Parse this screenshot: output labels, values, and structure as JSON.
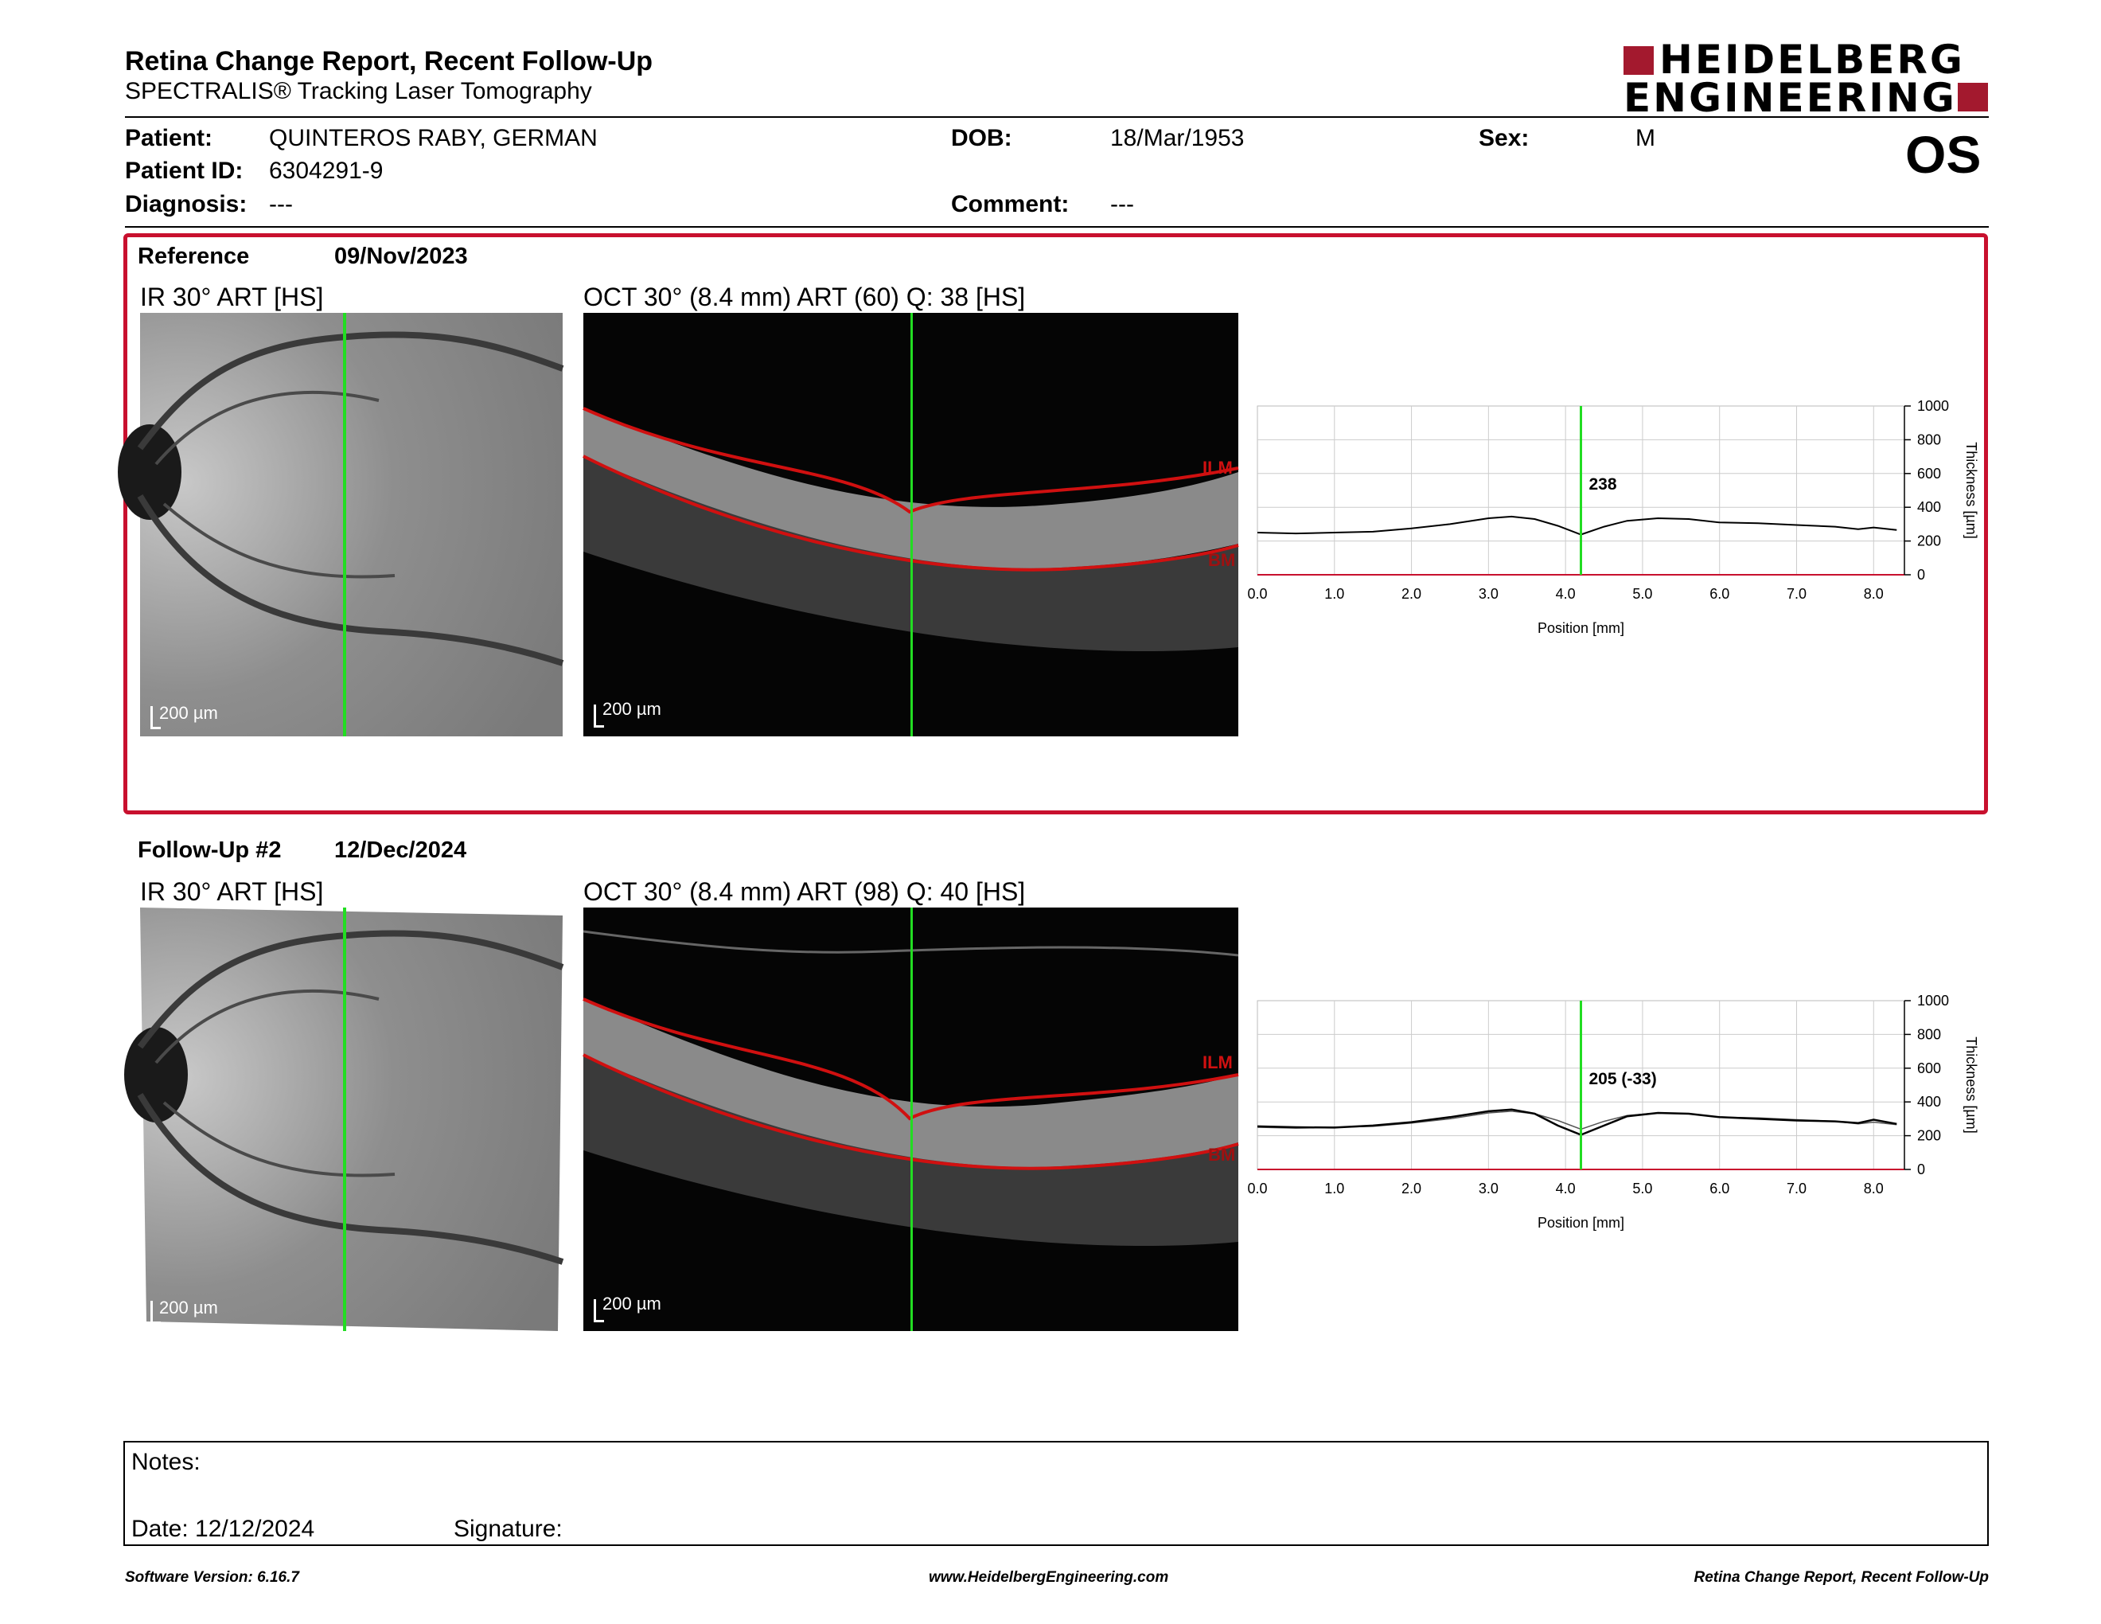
{
  "header": {
    "title": "Retina Change Report, Recent Follow-Up",
    "subtitle": "SPECTRALIS® Tracking Laser Tomography",
    "logo_line1": "HEIDELBERG",
    "logo_line2": "ENGINEERING",
    "eye": "OS"
  },
  "patient": {
    "name_label": "Patient:",
    "name": "QUINTEROS RABY, GERMAN",
    "id_label": "Patient ID:",
    "id": "6304291-9",
    "diagnosis_label": "Diagnosis:",
    "diagnosis": "---",
    "dob_label": "DOB:",
    "dob": "18/Mar/1953",
    "comment_label": "Comment:",
    "comment": "---",
    "sex_label": "Sex:",
    "sex": "M"
  },
  "reference": {
    "label": "Reference",
    "date": "09/Nov/2023",
    "ir_caption": "IR 30° ART [HS]",
    "oct_caption": "OCT 30° (8.4 mm) ART (60) Q: 38 [HS]",
    "ir_scale": "200 µm",
    "oct_scale": "200 µm",
    "ilm": "ILM",
    "bm": "BM",
    "chart_value_label": "238"
  },
  "followup": {
    "label": "Follow-Up #2",
    "date": "12/Dec/2024",
    "ir_caption": "IR 30° ART [HS]",
    "oct_caption": "OCT 30° (8.4 mm) ART (98) Q: 40 [HS]",
    "ir_scale": "200 µm",
    "oct_scale": "200 µm",
    "ilm": "ILM",
    "bm": "BM",
    "chart_value_label": "205 (-33)"
  },
  "notes": {
    "notes_label": "Notes:",
    "date_label": "Date: 12/12/2024",
    "signature_label": "Signature:"
  },
  "footer": {
    "left": "Software Version: 6.16.7",
    "center": "www.HeidelbergEngineering.com",
    "right": "Retina Change Report, Recent Follow-Up"
  },
  "colors": {
    "accent": "#c8102e",
    "scan_line": "#22dd22",
    "logo": "#a3192e"
  },
  "chart_data": [
    {
      "type": "line",
      "xlabel": "Position [mm]",
      "ylabel": "Thickness [µm]",
      "xlim": [
        0,
        8.4
      ],
      "ylim": [
        0,
        1000
      ],
      "xticks": [
        "0.0",
        "1.0",
        "2.0",
        "3.0",
        "4.0",
        "5.0",
        "6.0",
        "7.0",
        "8.0"
      ],
      "yticks": [
        "0",
        "200",
        "400",
        "600",
        "800",
        "1000"
      ],
      "marker_x": 4.2,
      "grid": true,
      "series": [
        {
          "x": [
            0,
            0.5,
            1,
            1.5,
            2,
            2.5,
            3,
            3.3,
            3.6,
            3.9,
            4.2,
            4.5,
            4.8,
            5.2,
            5.6,
            6,
            6.5,
            7,
            7.5,
            7.8,
            8,
            8.3
          ],
          "y": [
            250,
            245,
            250,
            255,
            275,
            300,
            335,
            345,
            330,
            290,
            238,
            285,
            320,
            335,
            330,
            310,
            305,
            295,
            285,
            270,
            280,
            265
          ]
        }
      ]
    },
    {
      "type": "line",
      "xlabel": "Position [mm]",
      "ylabel": "Thickness [µm]",
      "xlim": [
        0,
        8.4
      ],
      "ylim": [
        0,
        1000
      ],
      "xticks": [
        "0.0",
        "1.0",
        "2.0",
        "3.0",
        "4.0",
        "5.0",
        "6.0",
        "7.0",
        "8.0"
      ],
      "yticks": [
        "0",
        "200",
        "400",
        "600",
        "800",
        "1000"
      ],
      "marker_x": 4.2,
      "grid": true,
      "series": [
        {
          "x": [
            0,
            0.5,
            1,
            1.5,
            2,
            2.5,
            3,
            3.3,
            3.6,
            3.9,
            4.2,
            4.5,
            4.8,
            5.2,
            5.6,
            6,
            6.5,
            7,
            7.5,
            7.8,
            8,
            8.3
          ],
          "y": [
            250,
            245,
            250,
            255,
            275,
            300,
            335,
            345,
            330,
            290,
            238,
            285,
            320,
            335,
            330,
            310,
            305,
            295,
            285,
            270,
            280,
            265
          ]
        },
        {
          "x": [
            0,
            0.5,
            1,
            1.5,
            2,
            2.5,
            3,
            3.3,
            3.6,
            3.9,
            4.2,
            4.5,
            4.8,
            5.2,
            5.6,
            6,
            6.5,
            7,
            7.5,
            7.8,
            8,
            8.3
          ],
          "y": [
            255,
            250,
            248,
            260,
            280,
            310,
            345,
            355,
            330,
            260,
            205,
            260,
            315,
            335,
            330,
            310,
            300,
            290,
            285,
            275,
            295,
            270
          ]
        }
      ]
    }
  ]
}
